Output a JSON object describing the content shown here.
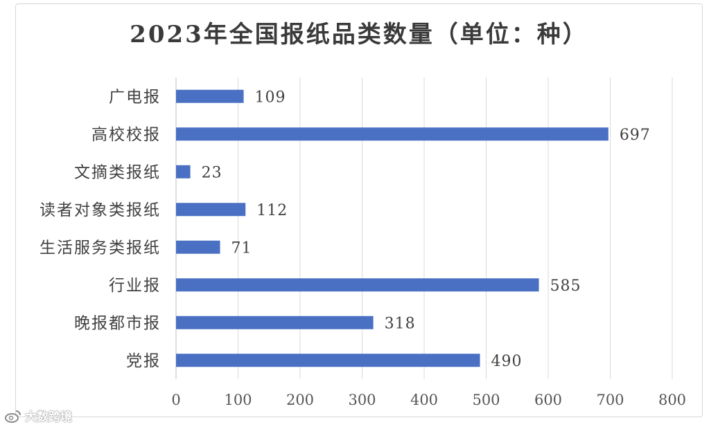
{
  "watermark": {
    "text": "大数跨境",
    "icon": "weibo-logo-icon"
  },
  "chart_data": {
    "type": "bar",
    "orientation": "horizontal",
    "title": "2023年全国报纸品类数量（单位：种）",
    "categories": [
      "广电报",
      "高校校报",
      "文摘类报纸",
      "读者对象类报纸",
      "生活服务类报纸",
      "行业报",
      "晚报都市报",
      "党报"
    ],
    "values": [
      109,
      697,
      23,
      112,
      71,
      585,
      318,
      490
    ],
    "xlim": [
      0,
      800
    ],
    "xticks": [
      0,
      100,
      200,
      300,
      400,
      500,
      600,
      700,
      800
    ],
    "grid": true,
    "legend": "none",
    "data_labels": true,
    "bar_color": "#4a70c4"
  }
}
